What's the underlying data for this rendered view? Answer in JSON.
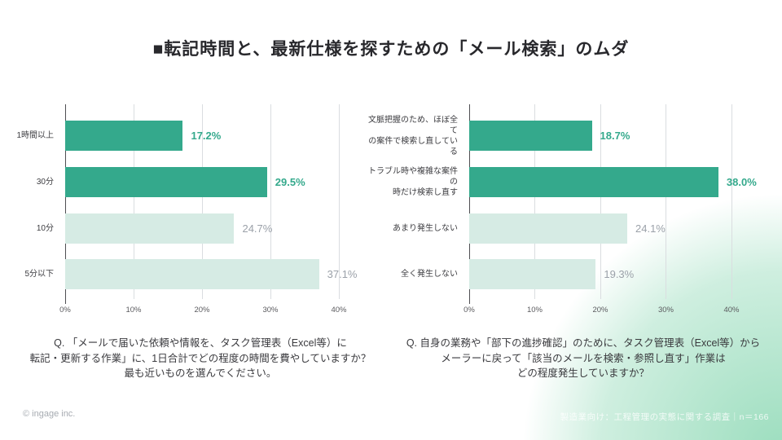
{
  "title": "■転記時間と、最新仕様を探すための「メール検索」のムダ",
  "footer": {
    "copyright": "© ingage inc.",
    "source": "製造業向け：工程管理の実態に関する調査｜n＝166"
  },
  "colors": {
    "bar_emphasis": "#34a98c",
    "bar_muted": "#d6ebe4",
    "value_emphasis": "#34a98c",
    "value_muted": "#9ba1a9",
    "gradient_accent": "#80d4ac"
  },
  "chart_data": [
    {
      "type": "bar",
      "orientation": "horizontal",
      "question": "Q. 「メールで届いた依頼や情報を、タスク管理表（Excel等）に\n転記・更新する作業」に、1日合計でどの程度の時間を費やしていますか？\n最も近いものを選んでください。",
      "categories": [
        "1時間以上",
        "30分",
        "10分",
        "5分以下"
      ],
      "values": [
        17.2,
        29.5,
        24.7,
        37.1
      ],
      "value_labels": [
        "17.2%",
        "29.5%",
        "24.7%",
        "37.1%"
      ],
      "emphasized": [
        true,
        true,
        false,
        false
      ],
      "xlim": [
        0,
        40
      ],
      "xticks": [
        "0%",
        "10%",
        "20%",
        "30%",
        "40%"
      ],
      "grid": true,
      "legend": false
    },
    {
      "type": "bar",
      "orientation": "horizontal",
      "question": "Q. 自身の業務や「部下の進捗確認」のために、タスク管理表（Excel等）から\nメーラーに戻って「該当のメールを検索・参照し直す」作業は\nどの程度発生していますか？",
      "categories": [
        "文脈把握のため、ほぼ全て\nの案件で検索し直している",
        "トラブル時や複雑な案件の\n時だけ検索し直す",
        "あまり発生しない",
        "全く発生しない"
      ],
      "values": [
        18.7,
        38.0,
        24.1,
        19.3
      ],
      "value_labels": [
        "18.7%",
        "38.0%",
        "24.1%",
        "19.3%"
      ],
      "emphasized": [
        true,
        true,
        false,
        false
      ],
      "xlim": [
        0,
        40
      ],
      "xticks": [
        "0%",
        "10%",
        "20%",
        "30%",
        "40%"
      ],
      "grid": true,
      "legend": false
    }
  ]
}
